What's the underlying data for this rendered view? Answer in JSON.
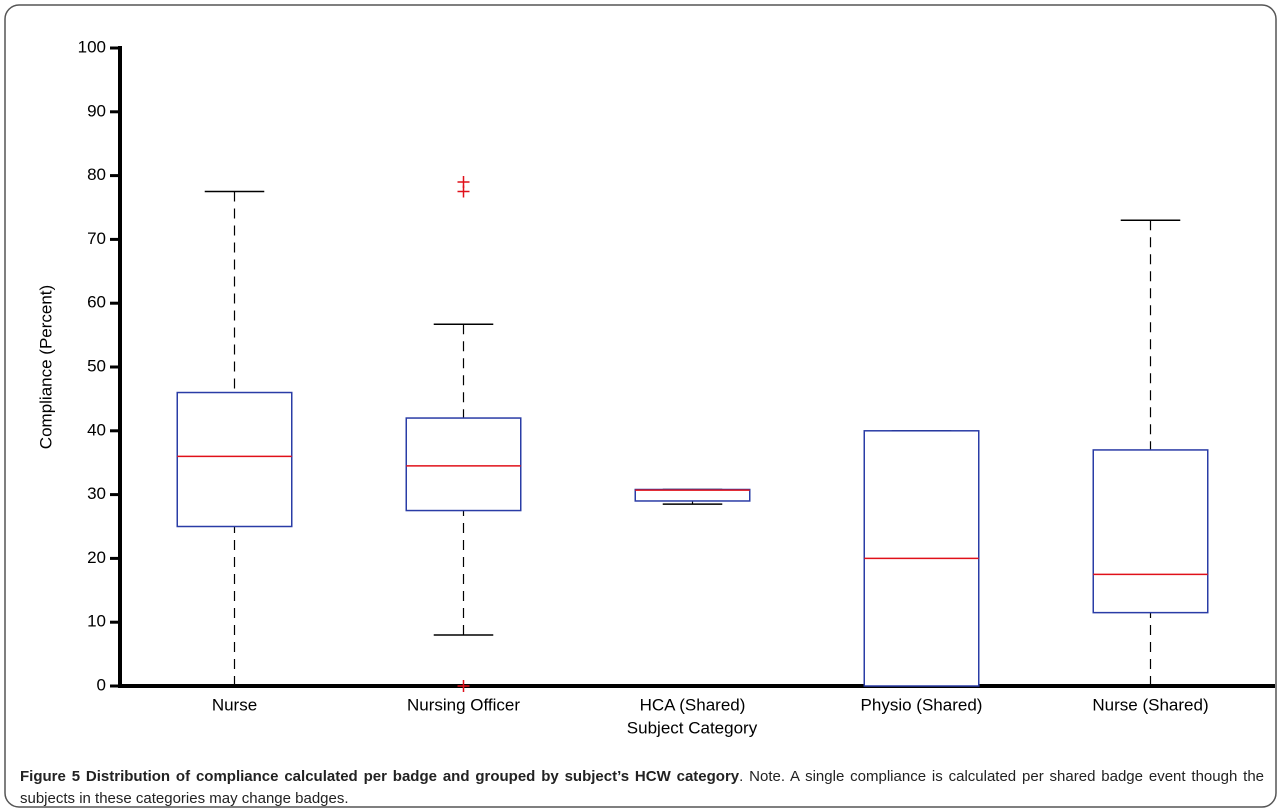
{
  "chart_data": {
    "type": "box",
    "title": "Figure 5 Distribution of compliance calculated per badge and grouped by subject’s HCW category",
    "caption_note": ". Note. A single compliance is calculated per shared badge event though the subjects in these categories may change badges.",
    "xlabel": "Subject Category",
    "ylabel": "Compliance (Percent)",
    "categories": [
      "Nurse",
      "Nursing Officer",
      "HCA (Shared)",
      "Physio (Shared)",
      "Nurse (Shared)"
    ],
    "boxes": [
      {
        "low": 0,
        "q1": 25,
        "median": 36,
        "q3": 46,
        "high": 77.5,
        "outliers": []
      },
      {
        "low": 8,
        "q1": 27.5,
        "median": 34.5,
        "q3": 42,
        "high": 56.7,
        "outliers": [
          77.5,
          79,
          0
        ]
      },
      {
        "low": 28.5,
        "q1": 29,
        "median": 30.7,
        "q3": 30.8,
        "high": 30.8,
        "outliers": []
      },
      {
        "low": 0,
        "q1": 0,
        "median": 20,
        "q3": 40,
        "high": 40,
        "outliers": []
      },
      {
        "low": 0,
        "q1": 11.5,
        "median": 17.5,
        "q3": 37,
        "high": 73,
        "outliers": []
      }
    ],
    "box_color": "#2a3ca6",
    "median_color": "#e0101a",
    "whisker_color": "#000000",
    "outlier_color": "#e0101a",
    "ylim": [
      0,
      100
    ],
    "yticks": [
      0,
      10,
      20,
      30,
      40,
      50,
      60,
      70,
      80,
      90,
      100
    ]
  }
}
